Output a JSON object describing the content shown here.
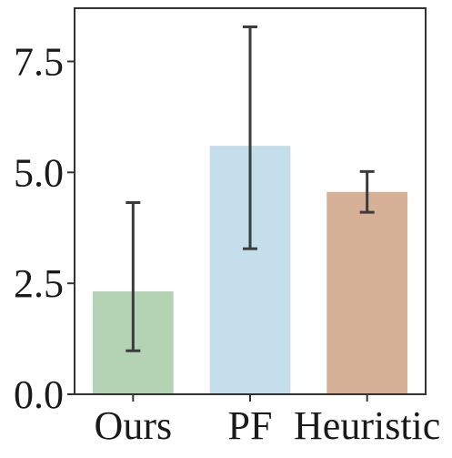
{
  "chart_data": {
    "type": "bar",
    "title": "",
    "xlabel": "",
    "ylabel": "",
    "categories": [
      "Ours",
      "PF",
      "Heuristic"
    ],
    "values": [
      2.32,
      5.6,
      4.56
    ],
    "error_low": [
      0.98,
      3.28,
      4.1
    ],
    "error_high": [
      4.32,
      8.28,
      5.02
    ],
    "bar_colors": [
      "#b3d3b4",
      "#c4dfeb",
      "#d6b197"
    ],
    "error_bar_color": "#3b3b3b",
    "ylim": [
      0,
      8.7
    ],
    "yticks": [
      0.0,
      2.5,
      5.0,
      7.5
    ],
    "ytick_labels": [
      "0.0",
      "2.5",
      "5.0",
      "7.5"
    ],
    "grid": false,
    "legend": "none"
  }
}
